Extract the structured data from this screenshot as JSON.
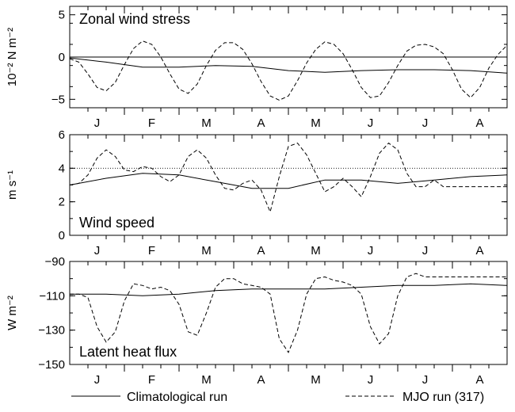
{
  "chart_data": [
    {
      "type": "line",
      "title": "Zonal wind stress",
      "ylabel": "10⁻² N m⁻²",
      "ylim": [
        -6,
        6
      ],
      "yticks": [
        5,
        0,
        -5
      ],
      "ytick_labels": [
        "5",
        "0",
        "−5"
      ],
      "months": [
        "J",
        "F",
        "M",
        "A",
        "M",
        "J",
        "J",
        "A"
      ],
      "xlim_days": [
        0,
        240
      ],
      "reference_line": {
        "y": 0,
        "style": "solid"
      },
      "series": [
        {
          "name": "Climatological run",
          "style": "solid",
          "x": [
            0,
            20,
            40,
            60,
            80,
            100,
            120,
            140,
            160,
            180,
            200,
            220,
            240
          ],
          "y": [
            -0.1,
            -0.6,
            -1.2,
            -1.2,
            -1.0,
            -1.1,
            -1.6,
            -1.8,
            -1.6,
            -1.5,
            -1.5,
            -1.6,
            -1.9
          ]
        },
        {
          "name": "MJO run (317)",
          "style": "dashed",
          "x": [
            0,
            5,
            10,
            15,
            20,
            25,
            30,
            35,
            40,
            45,
            50,
            55,
            60,
            65,
            70,
            75,
            80,
            85,
            90,
            95,
            100,
            105,
            110,
            115,
            120,
            125,
            130,
            135,
            140,
            145,
            150,
            155,
            160,
            165,
            170,
            175,
            180,
            185,
            190,
            195,
            200,
            205,
            210,
            215,
            220,
            225,
            230,
            235,
            240
          ],
          "y": [
            -0.2,
            -0.6,
            -2.0,
            -3.6,
            -4.0,
            -3.0,
            -0.9,
            1.0,
            1.9,
            1.5,
            0.0,
            -2.0,
            -3.8,
            -4.3,
            -3.2,
            -1.0,
            0.8,
            1.7,
            1.7,
            0.9,
            -0.8,
            -2.9,
            -4.6,
            -5.1,
            -4.6,
            -2.8,
            -0.7,
            0.9,
            1.8,
            1.5,
            0.4,
            -1.5,
            -3.6,
            -4.8,
            -4.6,
            -3.0,
            -1.0,
            0.7,
            1.4,
            1.5,
            1.2,
            0.4,
            -1.5,
            -3.8,
            -4.8,
            -3.6,
            -1.3,
            0.3,
            1.4
          ]
        }
      ]
    },
    {
      "type": "line",
      "title": "Wind speed",
      "ylabel": "m s⁻¹",
      "ylim": [
        0,
        6
      ],
      "yticks": [
        6,
        4,
        2,
        0
      ],
      "ytick_labels": [
        "6",
        "4",
        "2",
        "0"
      ],
      "months": [
        "J",
        "F",
        "M",
        "A",
        "M",
        "J",
        "J",
        "A"
      ],
      "xlim_days": [
        0,
        240
      ],
      "reference_line": {
        "y": 4,
        "style": "dotted"
      },
      "series": [
        {
          "name": "Climatological run",
          "style": "solid",
          "x": [
            0,
            20,
            40,
            60,
            80,
            100,
            120,
            140,
            160,
            180,
            200,
            220,
            240
          ],
          "y": [
            3.0,
            3.4,
            3.7,
            3.6,
            3.2,
            2.8,
            2.8,
            3.3,
            3.3,
            3.1,
            3.3,
            3.5,
            3.6
          ]
        },
        {
          "name": "MJO run (317)",
          "style": "dashed",
          "x": [
            0,
            5,
            10,
            15,
            20,
            25,
            30,
            35,
            40,
            45,
            50,
            55,
            60,
            65,
            70,
            75,
            80,
            85,
            90,
            95,
            100,
            105,
            110,
            115,
            120,
            125,
            130,
            135,
            140,
            145,
            150,
            155,
            160,
            165,
            170,
            175,
            180,
            185,
            190,
            195,
            200,
            205,
            210,
            215,
            220,
            225,
            230,
            235,
            240
          ],
          "y": [
            3.0,
            3.1,
            3.6,
            4.6,
            5.1,
            4.7,
            3.9,
            3.8,
            4.1,
            4.0,
            3.5,
            3.2,
            3.6,
            4.7,
            5.1,
            4.6,
            3.6,
            2.8,
            2.7,
            3.1,
            3.3,
            2.7,
            1.4,
            3.5,
            5.3,
            5.5,
            4.8,
            3.7,
            2.6,
            2.9,
            3.4,
            2.9,
            2.3,
            3.5,
            4.9,
            5.5,
            5.1,
            3.7,
            2.9,
            2.9,
            3.3,
            2.9,
            2.9,
            2.9,
            2.9,
            2.9,
            2.9,
            2.9,
            2.9
          ]
        }
      ]
    },
    {
      "type": "line",
      "title": "Latent heat flux",
      "ylabel": "W m⁻²",
      "ylim": [
        -150,
        -90
      ],
      "yticks": [
        -90,
        -110,
        -130,
        -150
      ],
      "ytick_labels": [
        "−90",
        "−110",
        "−130",
        "−150"
      ],
      "months": [
        "J",
        "F",
        "M",
        "A",
        "M",
        "J",
        "J",
        "A"
      ],
      "xlim_days": [
        0,
        240
      ],
      "series": [
        {
          "name": "Climatological run",
          "style": "solid",
          "x": [
            0,
            20,
            40,
            60,
            80,
            100,
            120,
            140,
            160,
            180,
            200,
            220,
            240
          ],
          "y": [
            -109,
            -109,
            -110,
            -109,
            -107,
            -106,
            -106,
            -106,
            -105,
            -104,
            -104,
            -103,
            -104
          ]
        },
        {
          "name": "MJO run (317)",
          "style": "dashed",
          "x": [
            0,
            5,
            10,
            15,
            20,
            25,
            30,
            35,
            40,
            45,
            50,
            55,
            60,
            65,
            70,
            75,
            80,
            85,
            90,
            95,
            100,
            105,
            110,
            115,
            120,
            125,
            130,
            135,
            140,
            145,
            150,
            155,
            160,
            165,
            170,
            175,
            180,
            185,
            190,
            195,
            200,
            205,
            210,
            215,
            220,
            225,
            230,
            235,
            240
          ],
          "y": [
            -109,
            -109,
            -111,
            -128,
            -137,
            -131,
            -113,
            -103,
            -104,
            -106,
            -105,
            -107,
            -115,
            -131,
            -133,
            -120,
            -105,
            -100,
            -100,
            -103,
            -104,
            -105,
            -109,
            -135,
            -143,
            -130,
            -109,
            -100,
            -99,
            -101,
            -102,
            -104,
            -109,
            -128,
            -138,
            -132,
            -110,
            -99,
            -97,
            -99,
            -99,
            -99,
            -99,
            -99,
            -99,
            -99,
            -99,
            -99,
            -99
          ]
        }
      ]
    }
  ],
  "legend": {
    "position": "bottom",
    "entries": [
      {
        "label": "Climatological run",
        "style": "solid"
      },
      {
        "label": "MJO run (317)",
        "style": "dashed"
      }
    ]
  }
}
